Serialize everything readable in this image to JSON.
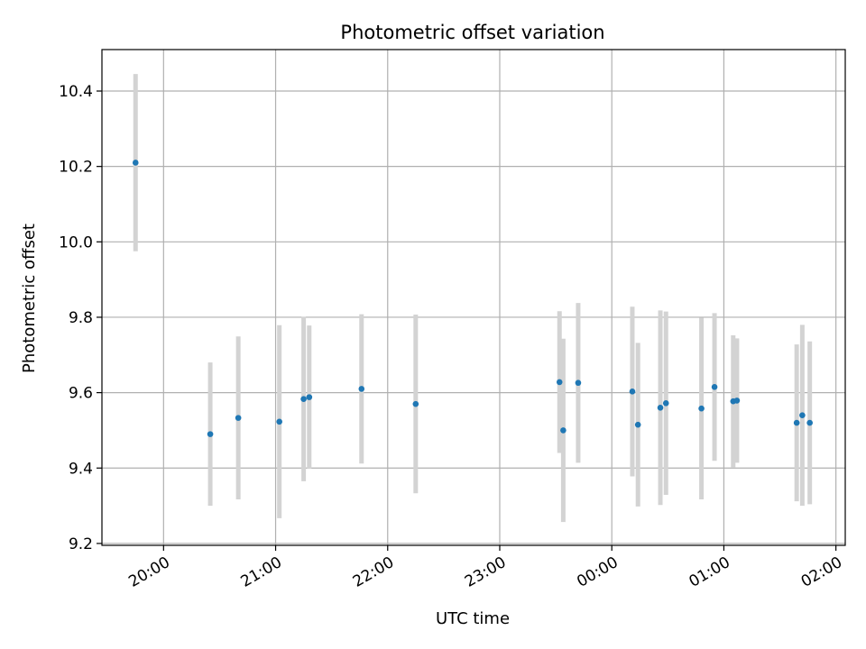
{
  "chart_data": {
    "type": "scatter",
    "title": "Photometric offset variation",
    "xlabel": "UTC time",
    "ylabel": "Photometric offset",
    "grid": true,
    "x_axis_type": "time",
    "xlim": [
      "19:27",
      "02:05"
    ],
    "ylim": [
      9.195,
      10.51
    ],
    "x_ticks": [
      "20:00",
      "21:00",
      "22:00",
      "23:00",
      "00:00",
      "01:00",
      "02:00"
    ],
    "y_ticks": [
      "9.2",
      "9.4",
      "9.6",
      "9.8",
      "10.0",
      "10.2",
      "10.4"
    ],
    "colors": {
      "point": "#1f77b4",
      "errorbar": "#d3d3d3",
      "grid": "#b0b0b0"
    },
    "points": [
      {
        "x": "19:45",
        "y": 10.21,
        "err": 0.235
      },
      {
        "x": "20:25",
        "y": 9.49,
        "err": 0.19
      },
      {
        "x": "20:40",
        "y": 9.533,
        "err": 0.216
      },
      {
        "x": "21:02",
        "y": 9.523,
        "err": 0.256
      },
      {
        "x": "21:15",
        "y": 9.583,
        "err": 0.218
      },
      {
        "x": "21:18",
        "y": 9.588,
        "err": 0.19
      },
      {
        "x": "21:46",
        "y": 9.61,
        "err": 0.198
      },
      {
        "x": "22:15",
        "y": 9.57,
        "err": 0.237
      },
      {
        "x": "23:32",
        "y": 9.628,
        "err": 0.188
      },
      {
        "x": "23:34",
        "y": 9.5,
        "err": 0.243
      },
      {
        "x": "23:42",
        "y": 9.626,
        "err": 0.212
      },
      {
        "x": "00:11",
        "y": 9.603,
        "err": 0.225
      },
      {
        "x": "00:14",
        "y": 9.515,
        "err": 0.217
      },
      {
        "x": "00:26",
        "y": 9.56,
        "err": 0.258
      },
      {
        "x": "00:29",
        "y": 9.572,
        "err": 0.243
      },
      {
        "x": "00:48",
        "y": 9.558,
        "err": 0.241
      },
      {
        "x": "00:55",
        "y": 9.615,
        "err": 0.196
      },
      {
        "x": "01:05",
        "y": 9.577,
        "err": 0.175
      },
      {
        "x": "01:07",
        "y": 9.579,
        "err": 0.165
      },
      {
        "x": "01:39",
        "y": 9.52,
        "err": 0.208
      },
      {
        "x": "01:42",
        "y": 9.54,
        "err": 0.24
      },
      {
        "x": "01:46",
        "y": 9.52,
        "err": 0.216
      }
    ]
  }
}
